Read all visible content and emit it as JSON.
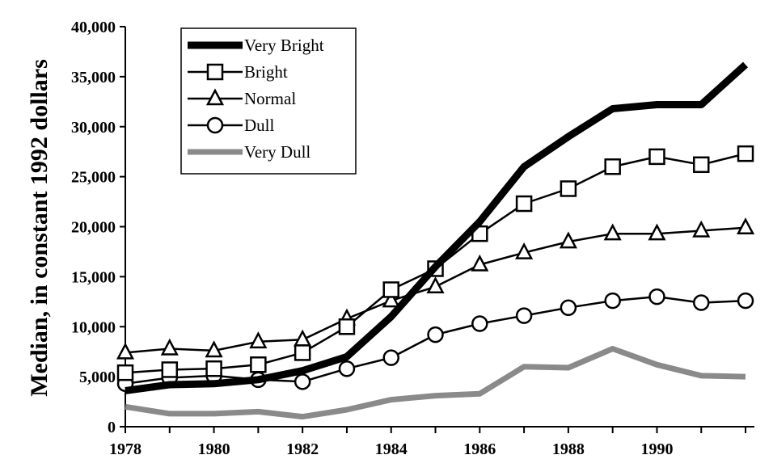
{
  "chart_data": {
    "type": "line",
    "title": "",
    "xlabel": "",
    "ylabel": "Median, in constant 1992 dollars",
    "x": [
      1978,
      1979,
      1980,
      1981,
      1982,
      1983,
      1984,
      1985,
      1986,
      1987,
      1988,
      1989,
      1990,
      1991,
      1992
    ],
    "xlim": [
      1978,
      1992.2
    ],
    "ylim": [
      0,
      40000
    ],
    "x_ticks": [
      "1978",
      "1980",
      "1982",
      "1984",
      "1986",
      "1988",
      "1990"
    ],
    "y_ticks": [
      "0",
      "5,000",
      "10,000",
      "15,000",
      "20,000",
      "25,000",
      "30,000",
      "35,000",
      "40,000"
    ],
    "grid": false,
    "legend_position": "top-left",
    "series": [
      {
        "name": "Very Bright",
        "marker": "none",
        "style": "thick",
        "color": "#000000",
        "values": [
          3600,
          4200,
          4300,
          4700,
          5600,
          7000,
          11000,
          16000,
          20500,
          26000,
          29000,
          31800,
          32200,
          32200,
          36200
        ]
      },
      {
        "name": "Bright",
        "marker": "square",
        "style": "normal",
        "color": "#000000",
        "values": [
          5400,
          5700,
          5800,
          6200,
          7400,
          10000,
          13700,
          15800,
          19300,
          22300,
          23800,
          26000,
          27000,
          26200,
          27300
        ]
      },
      {
        "name": "Normal",
        "marker": "triangle",
        "style": "normal",
        "color": "#000000",
        "values": [
          7400,
          7800,
          7600,
          8500,
          8700,
          10800,
          12600,
          14000,
          16200,
          17400,
          18500,
          19300,
          19300,
          19600,
          19900
        ]
      },
      {
        "name": "Dull",
        "marker": "circle",
        "style": "normal",
        "color": "#000000",
        "values": [
          4300,
          4900,
          5100,
          4700,
          4500,
          5800,
          6900,
          9200,
          10300,
          11100,
          11900,
          12600,
          13000,
          12400,
          12600
        ]
      },
      {
        "name": "Very Dull",
        "marker": "none",
        "style": "thick-gray",
        "color": "#888888",
        "values": [
          2000,
          1300,
          1300,
          1500,
          1000,
          1700,
          2700,
          3100,
          3300,
          6000,
          5900,
          7800,
          6200,
          5100,
          5000
        ]
      }
    ]
  }
}
